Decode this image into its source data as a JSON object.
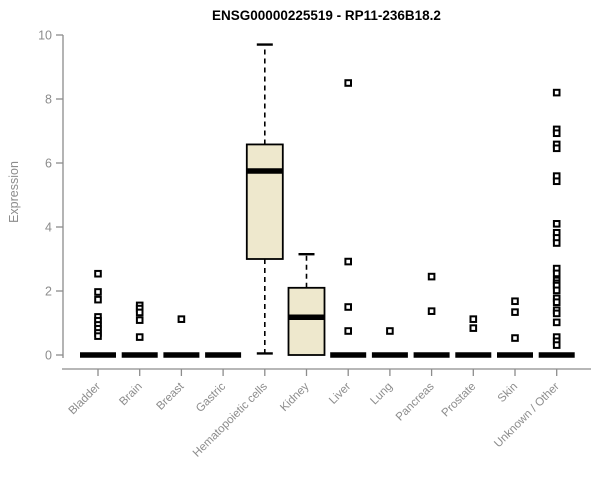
{
  "window": {
    "title": "ENSG00000225519 - RP11-236B18.2"
  },
  "chart_data": {
    "type": "boxplot",
    "title": "ENSG00000225519 - RP11-236B18.2",
    "xlabel": "",
    "ylabel": "Expression",
    "ylim": [
      0,
      10
    ],
    "yticks": [
      0,
      2,
      4,
      6,
      8,
      10
    ],
    "grid": false,
    "legend": "none",
    "colors": {
      "box_fill": "#EEE8CD",
      "box_stroke": "#000000",
      "median": "#000000",
      "outlier": "#000000",
      "axis": "#8c8c8c",
      "tick_label": "#8c8c8c",
      "title": "#000000"
    },
    "categories": [
      "Bladder",
      "Brain",
      "Breast",
      "Gastric",
      "Hematopoietic cells",
      "Kidney",
      "Liver",
      "Lung",
      "Pancreas",
      "Prostate",
      "Skin",
      "Unknown / Other"
    ],
    "boxes": [
      {
        "category": "Bladder",
        "low": 0,
        "q1": 0,
        "median": 0,
        "q3": 0,
        "high": 0,
        "outliers": [
          2.54,
          1.97,
          1.73,
          1.19,
          1.07,
          0.94,
          0.82,
          0.69,
          0.59
        ]
      },
      {
        "category": "Brain",
        "low": 0,
        "q1": 0,
        "median": 0,
        "q3": 0,
        "high": 0,
        "outliers": [
          1.55,
          1.45,
          1.33,
          1.09,
          0.56
        ]
      },
      {
        "category": "Breast",
        "low": 0,
        "q1": 0,
        "median": 0,
        "q3": 0,
        "high": 0,
        "outliers": [
          1.12
        ]
      },
      {
        "category": "Gastric",
        "low": 0,
        "q1": 0,
        "median": 0,
        "q3": 0,
        "high": 0,
        "outliers": []
      },
      {
        "category": "Hematopoietic cells",
        "low": 0.05,
        "q1": 3.0,
        "median": 5.75,
        "q3": 6.58,
        "high": 9.7,
        "outliers": []
      },
      {
        "category": "Kidney",
        "low": 0,
        "q1": 0,
        "median": 1.18,
        "q3": 2.1,
        "high": 3.15,
        "outliers": []
      },
      {
        "category": "Liver",
        "low": 0,
        "q1": 0,
        "median": 0,
        "q3": 0,
        "high": 0,
        "outliers": [
          8.5,
          2.92,
          1.5,
          0.75
        ]
      },
      {
        "category": "Lung",
        "low": 0,
        "q1": 0,
        "median": 0,
        "q3": 0,
        "high": 0,
        "outliers": [
          0.75
        ]
      },
      {
        "category": "Pancreas",
        "low": 0,
        "q1": 0,
        "median": 0,
        "q3": 0,
        "high": 0,
        "outliers": [
          2.45,
          1.37
        ]
      },
      {
        "category": "Prostate",
        "low": 0,
        "q1": 0,
        "median": 0,
        "q3": 0,
        "high": 0,
        "outliers": [
          1.12,
          0.84
        ]
      },
      {
        "category": "Skin",
        "low": 0,
        "q1": 0,
        "median": 0,
        "q3": 0,
        "high": 0,
        "outliers": [
          1.68,
          1.34,
          0.53
        ]
      },
      {
        "category": "Unknown / Other",
        "low": 0,
        "q1": 0,
        "median": 0,
        "q3": 0,
        "high": 0,
        "outliers": [
          8.2,
          7.05,
          6.93,
          6.58,
          6.46,
          5.59,
          5.43,
          4.1,
          3.82,
          3.66,
          3.5,
          2.7,
          2.55,
          2.33,
          2.24,
          2.17,
          2.02,
          1.77,
          1.65,
          1.4,
          1.3,
          1.02,
          0.56,
          0.43,
          0.31
        ]
      }
    ]
  }
}
